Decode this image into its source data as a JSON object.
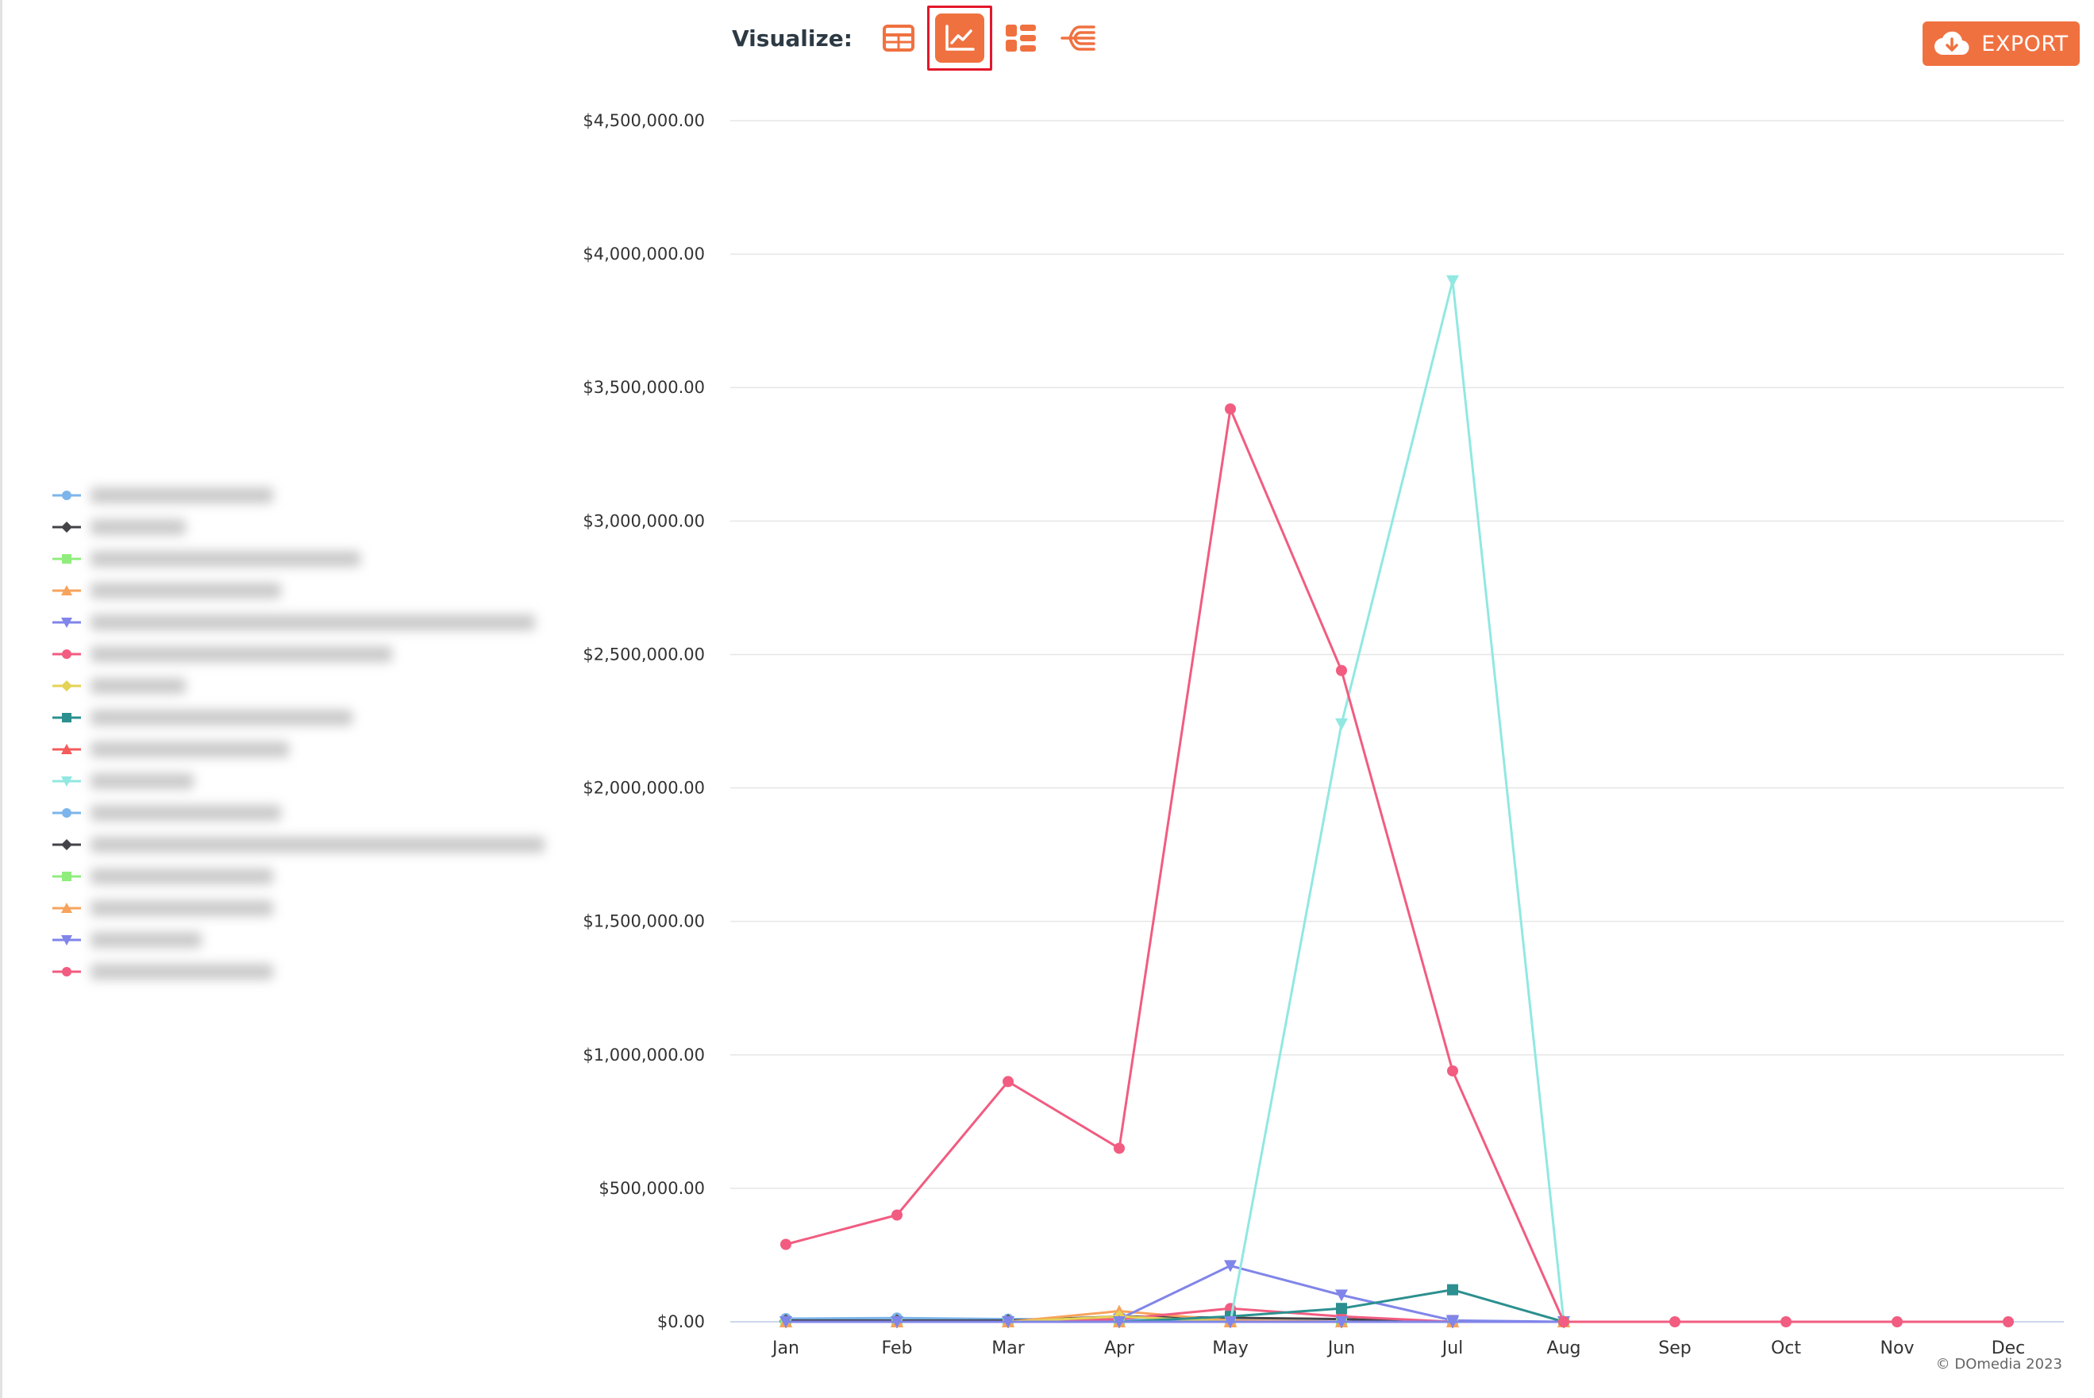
{
  "toolbar": {
    "visualize_label": "Visualize:",
    "icons": [
      "table-icon",
      "line-chart-icon",
      "grid-list-icon",
      "tree-icon"
    ],
    "active": "line-chart-icon",
    "export_label": "EXPORT",
    "accent": "#f07140",
    "highlight": "#e3172a"
  },
  "credit": "© DOmedia 2023",
  "chart_data": {
    "type": "line",
    "title": "",
    "xlabel": "",
    "ylabel": "",
    "categories": [
      "Jan",
      "Feb",
      "Mar",
      "Apr",
      "May",
      "Jun",
      "Jul",
      "Aug",
      "Sep",
      "Oct",
      "Nov",
      "Dec"
    ],
    "ylim": [
      0,
      4500000
    ],
    "yticks": [
      0,
      500000,
      1000000,
      1500000,
      2000000,
      2500000,
      3000000,
      3500000,
      4000000,
      4500000
    ],
    "ytick_labels": [
      "$0.00",
      "$500,000.00",
      "$1,000,000.00",
      "$1,500,000.00",
      "$2,000,000.00",
      "$2,500,000.00",
      "$3,000,000.00",
      "$3,500,000.00",
      "$4,000,000.00",
      "$4,500,000.00"
    ],
    "grid": true,
    "legend_position": "left",
    "legend_names_blurred": true,
    "series": [
      {
        "color": "#7cb5ec",
        "marker": "circle",
        "values": [
          12000,
          14000,
          10000,
          8000,
          0,
          0,
          0,
          0,
          0,
          0,
          0,
          0
        ]
      },
      {
        "color": "#434348",
        "marker": "diamond",
        "values": [
          5000,
          5000,
          5000,
          20000,
          15000,
          10000,
          0,
          0,
          0,
          0,
          0,
          0
        ]
      },
      {
        "color": "#90ed7d",
        "marker": "square",
        "values": [
          0,
          0,
          0,
          0,
          0,
          0,
          0,
          0,
          0,
          0,
          0,
          0
        ]
      },
      {
        "color": "#f7a35c",
        "marker": "triangle",
        "values": [
          0,
          0,
          0,
          40000,
          5000,
          0,
          0,
          0,
          0,
          0,
          0,
          0
        ]
      },
      {
        "color": "#8085e9",
        "marker": "triangle-down",
        "values": [
          0,
          0,
          0,
          10000,
          210000,
          100000,
          5000,
          0,
          0,
          0,
          0,
          0
        ]
      },
      {
        "color": "#f15c80",
        "marker": "circle",
        "values": [
          0,
          0,
          0,
          10000,
          50000,
          20000,
          0,
          0,
          0,
          0,
          0,
          0
        ]
      },
      {
        "color": "#e4d354",
        "marker": "diamond",
        "values": [
          0,
          0,
          0,
          20000,
          0,
          0,
          0,
          0,
          0,
          0,
          0,
          0
        ]
      },
      {
        "color": "#2b908f",
        "marker": "square",
        "values": [
          0,
          0,
          0,
          0,
          20000,
          50000,
          120000,
          0,
          0,
          0,
          0,
          0
        ]
      },
      {
        "color": "#f45b5b",
        "marker": "triangle",
        "values": [
          0,
          0,
          0,
          0,
          0,
          0,
          0,
          0,
          0,
          0,
          0,
          0
        ]
      },
      {
        "color": "#91e8e1",
        "marker": "triangle-down",
        "values": [
          0,
          0,
          0,
          0,
          0,
          2240000,
          3900000,
          0,
          0,
          0,
          0,
          0
        ]
      },
      {
        "color": "#7cb5ec",
        "marker": "circle",
        "values": [
          0,
          0,
          0,
          0,
          0,
          0,
          0,
          0,
          0,
          0,
          0,
          0
        ]
      },
      {
        "color": "#434348",
        "marker": "diamond",
        "values": [
          0,
          0,
          0,
          0,
          0,
          0,
          0,
          0,
          0,
          0,
          0,
          0
        ]
      },
      {
        "color": "#90ed7d",
        "marker": "square",
        "values": [
          0,
          0,
          0,
          0,
          0,
          0,
          0,
          0,
          0,
          0,
          0,
          0
        ]
      },
      {
        "color": "#f7a35c",
        "marker": "triangle",
        "values": [
          0,
          0,
          0,
          0,
          0,
          0,
          0,
          0,
          0,
          0,
          0,
          0
        ]
      },
      {
        "color": "#8085e9",
        "marker": "triangle-down",
        "values": [
          0,
          0,
          0,
          0,
          0,
          0,
          0,
          0,
          0,
          0,
          0,
          0
        ]
      },
      {
        "color": "#f15c80",
        "marker": "circle",
        "values": [
          290000,
          400000,
          900000,
          650000,
          3420000,
          2440000,
          940000,
          0,
          0,
          0,
          0,
          0
        ]
      }
    ]
  }
}
